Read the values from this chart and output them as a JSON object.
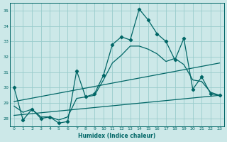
{
  "xlabel": "Humidex (Indice chaleur)",
  "bg_color": "#cce8e8",
  "line_color": "#006666",
  "grid_color": "#99cccc",
  "xlim": [
    -0.5,
    23.5
  ],
  "ylim": [
    27.5,
    35.5
  ],
  "yticks": [
    28,
    29,
    30,
    31,
    32,
    33,
    34,
    35
  ],
  "xticks": [
    0,
    1,
    2,
    3,
    4,
    5,
    6,
    7,
    8,
    9,
    10,
    11,
    12,
    13,
    14,
    15,
    16,
    17,
    18,
    19,
    20,
    21,
    22,
    23
  ],
  "main_x": [
    0,
    1,
    2,
    3,
    4,
    5,
    6,
    7,
    8,
    9,
    10,
    11,
    12,
    13,
    14,
    15,
    16,
    17,
    18,
    19,
    20,
    21,
    22,
    23
  ],
  "main_y": [
    30.0,
    27.9,
    28.6,
    28.0,
    28.1,
    27.7,
    27.8,
    31.1,
    29.4,
    29.6,
    30.8,
    32.8,
    33.3,
    33.1,
    35.1,
    34.4,
    33.5,
    33.0,
    31.8,
    33.2,
    29.9,
    30.7,
    29.6,
    29.5
  ],
  "smooth_x": [
    0,
    1,
    2,
    3,
    4,
    5,
    6,
    7,
    8,
    9,
    10,
    11,
    12,
    13,
    14,
    15,
    16,
    17,
    18,
    19,
    20,
    21,
    22,
    23
  ],
  "smooth_y": [
    28.8,
    28.4,
    28.6,
    28.1,
    28.1,
    27.9,
    28.1,
    29.3,
    29.4,
    29.5,
    30.5,
    31.6,
    32.1,
    32.7,
    32.7,
    32.5,
    32.2,
    31.7,
    31.9,
    31.5,
    30.5,
    30.4,
    29.7,
    29.5
  ],
  "trend1_x": [
    0,
    23
  ],
  "trend1_y": [
    29.1,
    31.6
  ],
  "trend2_x": [
    0,
    23
  ],
  "trend2_y": [
    28.2,
    29.5
  ]
}
